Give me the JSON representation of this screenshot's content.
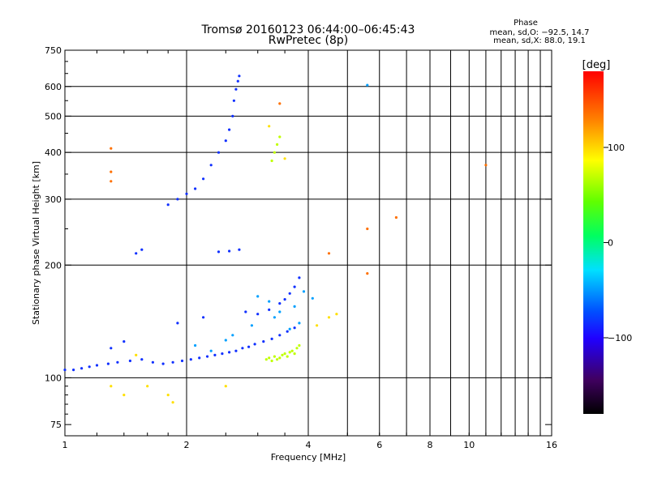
{
  "chart_data": {
    "type": "scatter",
    "title": "Tromsø 20160123 06:44:00–06:45:43",
    "subtitle": "RwPretec (8p)",
    "xlabel": "Frequency [MHz]",
    "ylabel": "Stationary phase Virtual Height [km]",
    "xscale": "log",
    "yscale": "log",
    "xlim": [
      1,
      16
    ],
    "ylim": [
      70,
      750
    ],
    "xticks": [
      1,
      2,
      4,
      8,
      16
    ],
    "xtick_labels": [
      "1",
      "2",
      "4",
      "8",
      "16"
    ],
    "xminor_labels": [
      "6",
      "10"
    ],
    "yticks": [
      75,
      100,
      200,
      300,
      400,
      500,
      600,
      750
    ],
    "ytick_labels": [
      "75",
      "100",
      "200",
      "300",
      "400",
      "500",
      "600",
      "750"
    ],
    "grid": true,
    "colorbar": {
      "label": "[deg]",
      "range": [
        -180,
        180
      ],
      "ticks": [
        -100,
        0,
        100
      ],
      "tick_labels": [
        "−100",
        "0",
        "100"
      ]
    },
    "stats": {
      "title": "Phase",
      "line1": "mean, sd,O: −92.5, 14.7",
      "line2": "mean, sd,X: 88.0, 19.1"
    },
    "series": [
      {
        "phase": -100,
        "color": "#1030ff",
        "x": [
          1.0,
          1.05,
          1.1,
          1.15,
          1.2,
          1.28,
          1.35,
          1.45,
          1.55,
          1.65,
          1.75,
          1.85,
          1.95,
          2.05,
          2.15,
          2.25,
          2.35,
          2.45,
          2.55,
          2.65,
          2.75,
          2.85,
          2.95,
          3.1,
          3.25,
          3.4,
          3.55,
          3.7,
          1.8,
          1.9,
          2.0,
          2.1,
          2.2,
          2.3,
          2.4,
          2.5,
          2.55,
          2.6,
          2.62,
          2.65,
          2.68,
          2.7,
          1.5,
          1.55,
          2.4,
          2.55,
          2.7,
          3.2,
          3.4,
          3.5,
          3.6,
          3.7,
          3.8,
          1.4,
          1.3,
          1.9,
          2.2,
          2.8,
          3.0
        ],
        "y": [
          105,
          105,
          106,
          107,
          108,
          109,
          110,
          111,
          112,
          110,
          109,
          110,
          111,
          112,
          113,
          114,
          115,
          116,
          117,
          118,
          120,
          121,
          123,
          125,
          127,
          130,
          133,
          136,
          290,
          300,
          310,
          320,
          340,
          370,
          400,
          430,
          460,
          500,
          550,
          590,
          620,
          640,
          215,
          220,
          217,
          218,
          220,
          152,
          158,
          162,
          168,
          175,
          185,
          125,
          120,
          140,
          145,
          150,
          148
        ]
      },
      {
        "phase": -60,
        "color": "#00a0ff",
        "x": [
          2.1,
          2.3,
          2.5,
          3.0,
          3.2,
          3.4,
          3.6,
          3.8,
          3.9,
          4.1,
          5.6,
          2.6,
          2.9,
          3.3,
          3.7
        ],
        "y": [
          122,
          118,
          126,
          165,
          160,
          150,
          135,
          140,
          170,
          163,
          605,
          130,
          138,
          145,
          155
        ]
      },
      {
        "phase": 60,
        "color": "#c0ff00",
        "x": [
          3.15,
          3.2,
          3.25,
          3.3,
          3.35,
          3.4,
          3.45,
          3.5,
          3.55,
          3.6,
          3.65,
          3.7,
          3.75,
          3.8,
          3.25,
          3.3,
          3.35,
          3.4
        ],
        "y": [
          112,
          113,
          111,
          114,
          112,
          113,
          115,
          116,
          114,
          117,
          118,
          116,
          120,
          122,
          380,
          400,
          420,
          440
        ]
      },
      {
        "phase": 100,
        "color": "#ffe000",
        "x": [
          1.3,
          1.4,
          1.6,
          1.8,
          1.85,
          2.5,
          4.2,
          4.5,
          4.7,
          1.5,
          3.2,
          3.5
        ],
        "y": [
          95,
          90,
          95,
          90,
          86,
          95,
          138,
          145,
          148,
          115,
          470,
          385
        ]
      },
      {
        "phase": 150,
        "color": "#ff7000",
        "x": [
          1.3,
          1.3,
          1.3,
          5.6,
          5.6,
          6.6,
          11,
          4.5,
          3.4
        ],
        "y": [
          410,
          355,
          335,
          250,
          190,
          268,
          370,
          215,
          540
        ]
      }
    ]
  }
}
